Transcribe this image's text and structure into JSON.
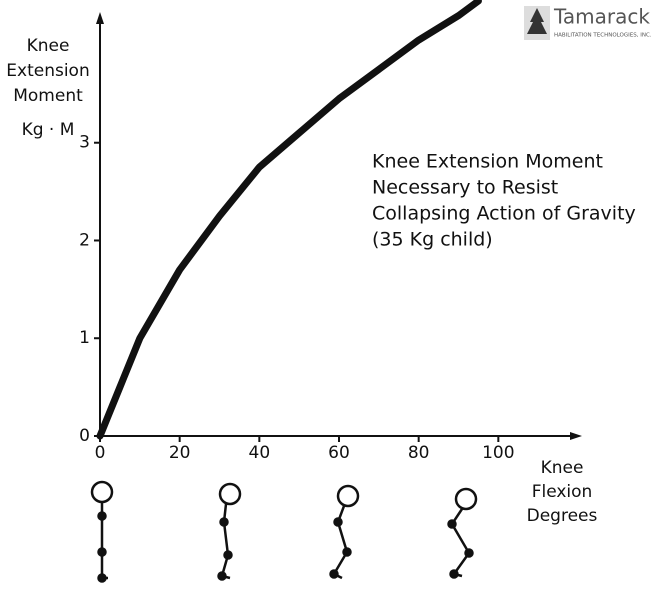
{
  "chart_data": {
    "type": "line",
    "y_label": [
      "Knee",
      "Extension",
      "Moment"
    ],
    "y_unit": "Kg · M",
    "x_label": [
      "Knee",
      "Flexion",
      "Degrees"
    ],
    "annotation": [
      "Knee Extension Moment",
      "Necessary to Resist",
      "Collapsing Action of Gravity",
      "(35 Kg child)"
    ],
    "logo": {
      "name": "Tamarack®",
      "subtitle": "HABILITATION TECHNOLOGIES, INC."
    },
    "x": [
      0,
      2,
      5,
      10,
      20,
      30,
      40,
      50,
      60,
      70,
      80,
      90,
      95
    ],
    "series": [
      {
        "color": "#111111",
        "values": [
          0,
          0.2,
          0.5,
          1.0,
          1.7,
          2.25,
          2.75,
          3.1,
          3.45,
          3.75,
          4.05,
          4.3,
          4.45
        ]
      }
    ],
    "xlim": [
      0,
      120
    ],
    "ylim": [
      0,
      4.46
    ],
    "xticks": [
      0,
      20,
      40,
      60,
      80,
      100
    ],
    "yticks": [
      0,
      1,
      2,
      3
    ]
  }
}
